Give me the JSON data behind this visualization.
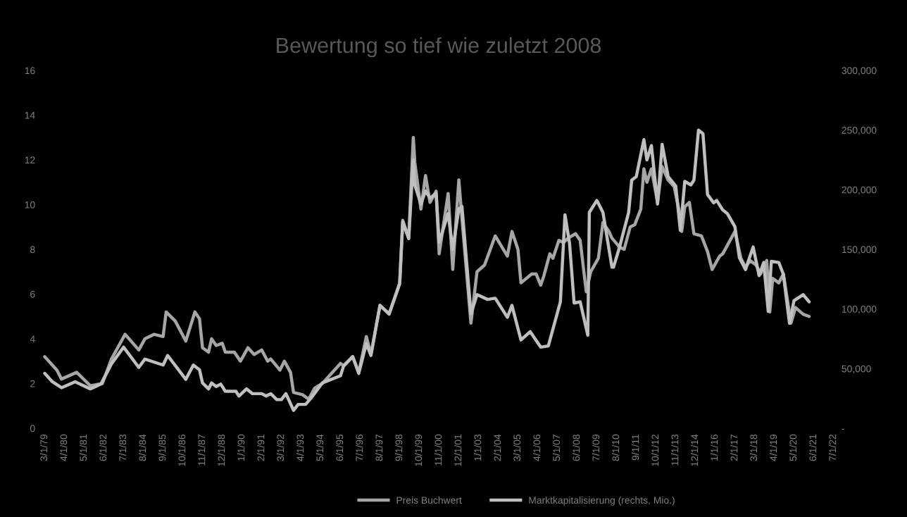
{
  "chart_data": {
    "type": "line",
    "title": "Bewertung so tief wie zuletzt 2008",
    "xlim": [
      "1978-11",
      "2022-10"
    ],
    "xticks": [
      {
        "value": "1979-03",
        "label": "3/1/79"
      },
      {
        "value": "1980-04",
        "label": "4/1/80"
      },
      {
        "value": "1981-05",
        "label": "5/1/81"
      },
      {
        "value": "1982-06",
        "label": "6/1/82"
      },
      {
        "value": "1983-07",
        "label": "7/1/83"
      },
      {
        "value": "1984-08",
        "label": "8/1/84"
      },
      {
        "value": "1985-09",
        "label": "9/1/85"
      },
      {
        "value": "1986-10",
        "label": "10/1/86"
      },
      {
        "value": "1987-11",
        "label": "11/1/87"
      },
      {
        "value": "1988-12",
        "label": "12/1/88"
      },
      {
        "value": "1990-01",
        "label": "1/1/90"
      },
      {
        "value": "1991-02",
        "label": "2/1/91"
      },
      {
        "value": "1992-03",
        "label": "3/1/92"
      },
      {
        "value": "1993-04",
        "label": "4/1/93"
      },
      {
        "value": "1994-05",
        "label": "5/1/94"
      },
      {
        "value": "1995-06",
        "label": "6/1/95"
      },
      {
        "value": "1996-07",
        "label": "7/1/96"
      },
      {
        "value": "1997-08",
        "label": "8/1/97"
      },
      {
        "value": "1998-09",
        "label": "9/1/98"
      },
      {
        "value": "1999-10",
        "label": "10/1/99"
      },
      {
        "value": "2000-11",
        "label": "11/1/00"
      },
      {
        "value": "2001-12",
        "label": "12/1/01"
      },
      {
        "value": "2003-01",
        "label": "1/1/03"
      },
      {
        "value": "2004-02",
        "label": "2/1/04"
      },
      {
        "value": "2005-03",
        "label": "3/1/05"
      },
      {
        "value": "2006-04",
        "label": "4/1/06"
      },
      {
        "value": "2007-05",
        "label": "5/1/07"
      },
      {
        "value": "2008-06",
        "label": "6/1/08"
      },
      {
        "value": "2009-07",
        "label": "7/1/09"
      },
      {
        "value": "2010-08",
        "label": "8/1/10"
      },
      {
        "value": "2011-09",
        "label": "9/1/11"
      },
      {
        "value": "2012-10",
        "label": "10/1/12"
      },
      {
        "value": "2013-11",
        "label": "11/1/13"
      },
      {
        "value": "2014-12",
        "label": "12/1/14"
      },
      {
        "value": "2016-01",
        "label": "1/1/16"
      },
      {
        "value": "2017-02",
        "label": "2/1/17"
      },
      {
        "value": "2018-03",
        "label": "3/1/18"
      },
      {
        "value": "2019-04",
        "label": "4/1/19"
      },
      {
        "value": "2020-05",
        "label": "5/1/20"
      },
      {
        "value": "2021-06",
        "label": "6/1/21"
      },
      {
        "value": "2022-07",
        "label": "7/1/22"
      }
    ],
    "ylim": [
      0,
      16
    ],
    "yticks": [
      0,
      2,
      4,
      6,
      8,
      10,
      12,
      14,
      16
    ],
    "y2lim": [
      0,
      300000
    ],
    "y2ticks": [
      {
        "value": 0,
        "label": "-"
      },
      {
        "value": 50000,
        "label": "50,000"
      },
      {
        "value": 100000,
        "label": "100,000"
      },
      {
        "value": 150000,
        "label": "150,000"
      },
      {
        "value": 200000,
        "label": "200,000"
      },
      {
        "value": 250000,
        "label": "250,000"
      },
      {
        "value": 300000,
        "label": "300,000"
      }
    ],
    "legend": "bottom",
    "grid": false,
    "marker": "none",
    "line_style": "solid",
    "series": [
      {
        "name": "Preis Buchwert",
        "color": "#a6a6a6",
        "x": [
          "1979-03",
          "1979-11",
          "1980-02",
          "1980-12",
          "1981-09",
          "1982-05",
          "1982-11",
          "1983-08",
          "1984-05",
          "1984-09",
          "1985-03",
          "1985-09",
          "1985-11",
          "1986-05",
          "1986-12",
          "1987-06",
          "1987-09",
          "1987-11",
          "1988-03",
          "1988-05",
          "1988-08",
          "1988-12",
          "1989-02",
          "1989-08",
          "1989-12",
          "1990-05",
          "1990-09",
          "1991-02",
          "1991-06",
          "1991-08",
          "1992-02",
          "1992-05",
          "1992-09",
          "1992-11",
          "1993-05",
          "1993-09",
          "1994-01",
          "1994-06",
          "1995-06",
          "1995-08",
          "1996-02",
          "1996-06",
          "1996-11",
          "1997-02",
          "1997-08",
          "1998-02",
          "1998-09",
          "1998-11",
          "1999-03",
          "1999-06",
          "1999-07",
          "1999-11",
          "2000-02",
          "2000-05",
          "2000-09",
          "2000-11",
          "2001-05",
          "2001-08",
          "2001-12",
          "2002-02",
          "2002-08",
          "2002-12",
          "2003-05",
          "2003-12",
          "2004-08",
          "2004-11",
          "2005-03",
          "2005-05",
          "2005-12",
          "2006-03",
          "2006-06",
          "2006-08",
          "2006-12",
          "2007-02",
          "2007-06",
          "2007-09",
          "2007-12",
          "2008-05",
          "2008-08",
          "2008-12",
          "2009-03",
          "2009-08",
          "2009-11",
          "2010-03",
          "2010-05",
          "2010-10",
          "2011-01",
          "2011-05",
          "2011-08",
          "2011-12",
          "2012-02",
          "2012-04",
          "2012-07",
          "2012-11",
          "2013-02",
          "2013-06",
          "2013-10",
          "2014-01",
          "2014-03",
          "2014-05",
          "2014-08",
          "2014-11",
          "2015-04",
          "2015-08",
          "2015-11",
          "2016-04",
          "2016-06",
          "2017-02",
          "2017-06",
          "2017-09",
          "2017-12",
          "2018-04",
          "2018-07",
          "2018-11",
          "2019-01",
          "2019-03",
          "2019-07",
          "2019-10",
          "2020-03",
          "2020-06",
          "2020-11",
          "2021-03"
        ],
        "values": [
          3.2,
          2.6,
          2.2,
          2.5,
          1.9,
          2.0,
          3.1,
          4.2,
          3.5,
          4.0,
          4.2,
          4.1,
          5.2,
          4.8,
          3.9,
          5.2,
          4.9,
          3.6,
          3.4,
          4.0,
          3.7,
          3.8,
          3.4,
          3.4,
          3.0,
          3.6,
          3.3,
          3.5,
          3.0,
          3.1,
          2.6,
          3.0,
          2.5,
          1.6,
          1.5,
          1.3,
          1.8,
          2.0,
          2.9,
          2.8,
          3.2,
          2.5,
          4.1,
          3.3,
          5.5,
          5.1,
          6.5,
          9.3,
          8.5,
          13.0,
          11.9,
          9.8,
          11.3,
          10.1,
          10.6,
          7.8,
          10.5,
          7.1,
          11.1,
          9.4,
          4.7,
          7.0,
          7.3,
          8.6,
          7.7,
          8.8,
          8.0,
          6.5,
          6.9,
          6.9,
          6.4,
          6.8,
          7.8,
          7.6,
          8.4,
          8.3,
          8.5,
          8.7,
          8.4,
          6.1,
          7.0,
          7.6,
          9.2,
          8.8,
          8.5,
          8.1,
          8.0,
          9.0,
          9.1,
          9.8,
          11.6,
          11.0,
          11.6,
          10.1,
          11.7,
          11.1,
          10.8,
          9.8,
          8.8,
          9.9,
          10.1,
          8.7,
          8.6,
          7.9,
          7.1,
          7.7,
          7.8,
          8.8,
          7.6,
          7.2,
          7.5,
          7.3,
          6.9,
          7.5,
          5.2,
          6.7,
          6.5,
          6.9,
          4.7,
          5.4,
          5.1,
          5.0
        ]
      },
      {
        "name": "Marktkapitalisierung (rechts, Mio.)",
        "color": "#bfbfbf",
        "axis": "y2",
        "x": [
          "1979-03",
          "1979-08",
          "1980-02",
          "1980-11",
          "1981-09",
          "1982-04",
          "1982-11",
          "1983-07",
          "1984-05",
          "1984-09",
          "1985-09",
          "1985-12",
          "1986-06",
          "1986-12",
          "1987-05",
          "1987-09",
          "1987-11",
          "1988-03",
          "1988-05",
          "1988-08",
          "1988-11",
          "1989-02",
          "1989-09",
          "1989-11",
          "1990-04",
          "1990-08",
          "1991-02",
          "1991-05",
          "1991-08",
          "1991-12",
          "1992-03",
          "1992-06",
          "1992-11",
          "1993-02",
          "1993-07",
          "1993-11",
          "1994-06",
          "1995-06",
          "1995-08",
          "1996-02",
          "1996-06",
          "1996-11",
          "1997-02",
          "1997-08",
          "1998-02",
          "1998-09",
          "1998-11",
          "1999-03",
          "1999-06",
          "1999-07",
          "1999-11",
          "2000-02",
          "2000-05",
          "2000-09",
          "2000-11",
          "2001-05",
          "2001-08",
          "2001-12",
          "2002-02",
          "2002-08",
          "2002-12",
          "2003-07",
          "2003-12",
          "2004-08",
          "2004-11",
          "2005-05",
          "2005-11",
          "2006-06",
          "2006-11",
          "2007-07",
          "2007-10",
          "2008-01",
          "2008-04",
          "2008-08",
          "2009-01",
          "2009-02",
          "2009-07",
          "2009-11",
          "2010-05",
          "2010-06",
          "2010-10",
          "2011-04",
          "2011-06",
          "2011-09",
          "2012-02",
          "2012-04",
          "2012-07",
          "2012-11",
          "2013-02",
          "2013-06",
          "2013-11",
          "2014-02",
          "2014-05",
          "2014-09",
          "2014-11",
          "2015-02",
          "2015-05",
          "2015-08",
          "2015-12",
          "2016-02",
          "2016-06",
          "2016-09",
          "2017-02",
          "2017-05",
          "2017-09",
          "2018-02",
          "2018-06",
          "2018-09",
          "2018-12",
          "2019-02",
          "2019-07",
          "2019-10",
          "2020-02",
          "2020-05",
          "2020-11",
          "2021-03"
        ],
        "values": [
          46000,
          39000,
          34000,
          39000,
          33000,
          37000,
          54000,
          68000,
          51000,
          58000,
          53000,
          61000,
          51000,
          41000,
          53000,
          49000,
          38000,
          33000,
          38000,
          35000,
          37000,
          31000,
          31000,
          27000,
          33000,
          29000,
          29000,
          27000,
          29000,
          24000,
          24000,
          29000,
          15000,
          20000,
          20000,
          26000,
          38000,
          44000,
          52000,
          60000,
          46000,
          71000,
          61000,
          103000,
          96000,
          121000,
          173000,
          159000,
          225000,
          204000,
          188000,
          199000,
          193000,
          197000,
          156000,
          180000,
          150000,
          184000,
          186000,
          96000,
          112000,
          108000,
          109000,
          93000,
          103000,
          74000,
          81000,
          68000,
          69000,
          106000,
          179000,
          155000,
          105000,
          106000,
          78000,
          181000,
          191000,
          181000,
          135000,
          135000,
          152000,
          181000,
          208000,
          211000,
          242000,
          225000,
          237000,
          188000,
          238000,
          211000,
          203000,
          166000,
          207000,
          204000,
          208000,
          250000,
          247000,
          196000,
          189000,
          191000,
          183000,
          180000,
          169000,
          143000,
          133000,
          152000,
          128000,
          139000,
          98000,
          140000,
          139000,
          129000,
          88000,
          107000,
          112000,
          106000
        ]
      }
    ]
  }
}
